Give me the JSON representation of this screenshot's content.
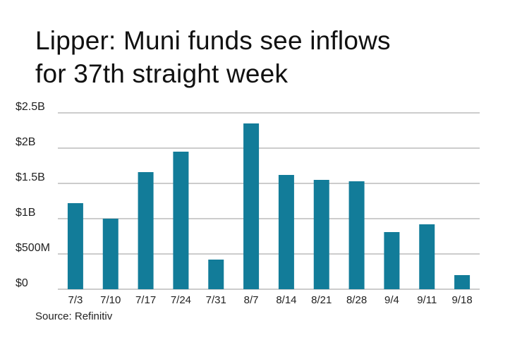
{
  "title_lines": [
    "Lipper: Muni funds see inflows",
    "for 37th straight week"
  ],
  "source": "Source: Refinitiv",
  "colors": {
    "bar": "#127c99",
    "grid": "#9a9a9a",
    "text": "#222222"
  },
  "chart_data": {
    "type": "bar",
    "title": "Lipper: Muni funds see inflows for 37th straight week",
    "xlabel": "",
    "ylabel": "",
    "categories": [
      "7/3",
      "7/10",
      "7/17",
      "7/24",
      "7/31",
      "8/7",
      "8/14",
      "8/21",
      "8/28",
      "9/4",
      "9/11",
      "9/18"
    ],
    "values": [
      1.22,
      1.0,
      1.66,
      1.95,
      0.42,
      2.35,
      1.62,
      1.55,
      1.53,
      0.81,
      0.92,
      0.2
    ],
    "unit": "billions USD",
    "ylim": [
      0,
      2.5
    ],
    "yticks": [
      0,
      0.5,
      1,
      1.5,
      2,
      2.5
    ],
    "ytick_labels": [
      "$0",
      "$500M",
      "$1B",
      "$1.5B",
      "$2B",
      "$2.5B"
    ],
    "grid": true,
    "legend": "none"
  }
}
